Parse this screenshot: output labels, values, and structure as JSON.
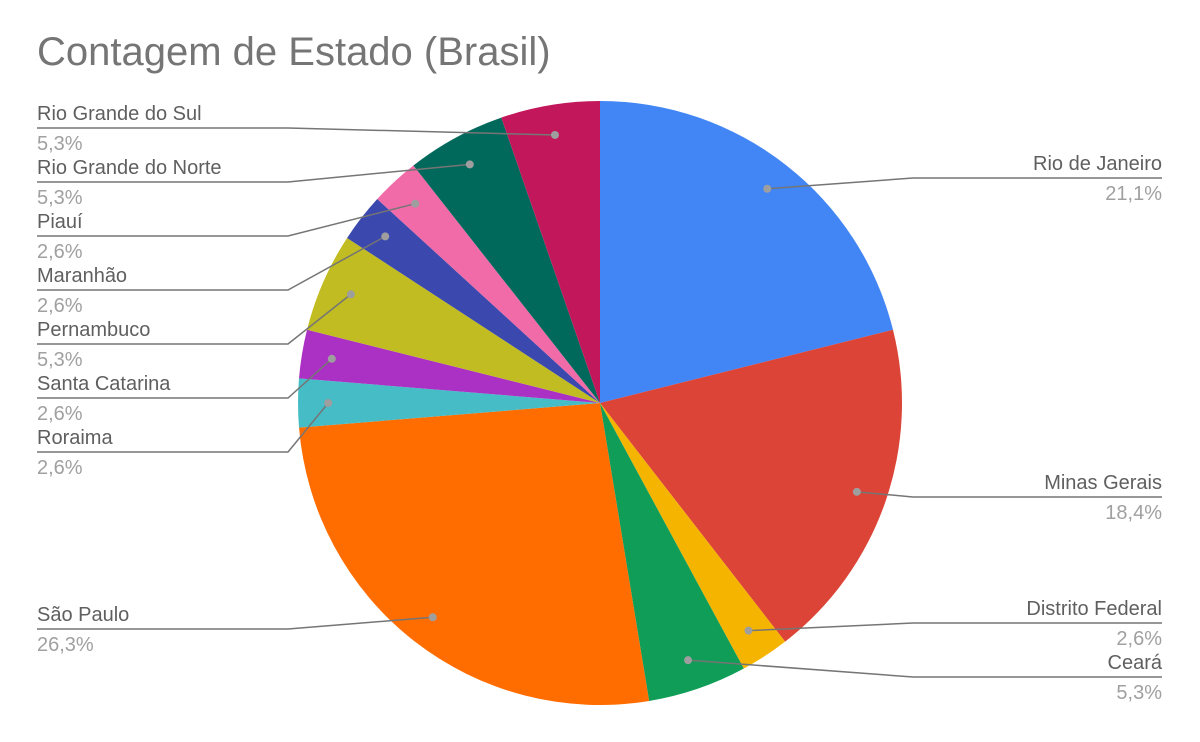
{
  "chart_data": {
    "type": "pie",
    "title": "Contagem de Estado (Brasil)",
    "start_angle_deg": 0,
    "direction": "clockwise",
    "slices": [
      {
        "label": "Rio de Janeiro",
        "value": 21.1,
        "pct_label": "21,1%",
        "color": "#4285f4"
      },
      {
        "label": "Minas Gerais",
        "value": 18.4,
        "pct_label": "18,4%",
        "color": "#db4437"
      },
      {
        "label": "Distrito Federal",
        "value": 2.6,
        "pct_label": "2,6%",
        "color": "#f4b400"
      },
      {
        "label": "Ceará",
        "value": 5.3,
        "pct_label": "5,3%",
        "color": "#0f9d58"
      },
      {
        "label": "São Paulo",
        "value": 26.3,
        "pct_label": "26,3%",
        "color": "#ff6d00"
      },
      {
        "label": "Roraima",
        "value": 2.6,
        "pct_label": "2,6%",
        "color": "#46bdc6"
      },
      {
        "label": "Santa Catarina",
        "value": 2.6,
        "pct_label": "2,6%",
        "color": "#ab30c4"
      },
      {
        "label": "Pernambuco",
        "value": 5.3,
        "pct_label": "5,3%",
        "color": "#c0bc21"
      },
      {
        "label": "Maranhão",
        "value": 2.6,
        "pct_label": "2,6%",
        "color": "#3b48ad"
      },
      {
        "label": "Piauí",
        "value": 2.6,
        "pct_label": "2,6%",
        "color": "#f06ba8"
      },
      {
        "label": "Rio Grande do Norte",
        "value": 5.3,
        "pct_label": "5,3%",
        "color": "#00695c"
      },
      {
        "label": "Rio Grande do Sul",
        "value": 5.3,
        "pct_label": "5,3%",
        "color": "#c2185b"
      }
    ]
  }
}
